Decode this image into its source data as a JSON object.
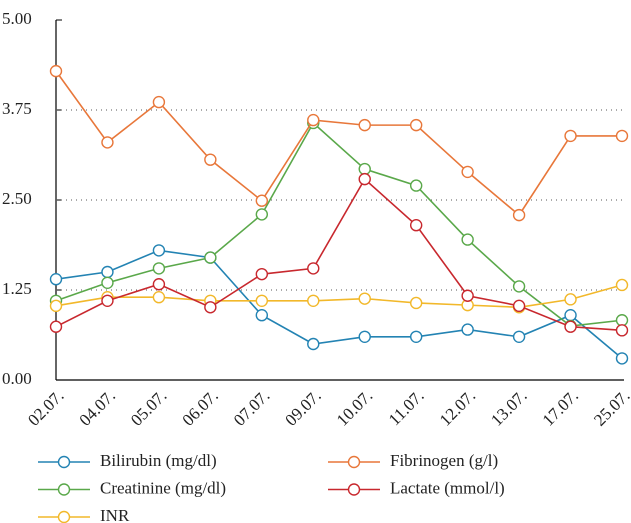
{
  "chart_data": {
    "type": "line",
    "categories": [
      "02.07.",
      "04.07.",
      "05.07.",
      "06.07.",
      "07.07.",
      "09.07.",
      "10.07.",
      "11.07.",
      "12.07.",
      "13.07.",
      "17.07.",
      "25.07."
    ],
    "series": [
      {
        "name": "Bilirubin (mg/dl)",
        "color": "#2383b3",
        "values": [
          1.4,
          1.5,
          1.8,
          1.7,
          0.9,
          0.5,
          0.6,
          0.6,
          0.7,
          0.6,
          0.9,
          0.3
        ]
      },
      {
        "name": "Creatinine (mg/dl)",
        "color": "#5aa84a",
        "values": [
          1.1,
          1.35,
          1.55,
          1.7,
          2.3,
          3.57,
          2.93,
          2.7,
          1.95,
          1.3,
          0.75,
          0.83
        ]
      },
      {
        "name": "INR",
        "color": "#f2b82a",
        "values": [
          1.03,
          1.15,
          1.15,
          1.1,
          1.1,
          1.1,
          1.13,
          1.07,
          1.04,
          1.01,
          1.12,
          1.32
        ]
      },
      {
        "name": "Fibrinogen (g/l)",
        "color": "#e8773a",
        "values": [
          4.29,
          3.3,
          3.86,
          3.06,
          2.49,
          3.61,
          3.54,
          3.54,
          2.89,
          2.29,
          3.39,
          3.39
        ]
      },
      {
        "name": "Lactate (mmol/l)",
        "color": "#c8282e",
        "values": [
          0.74,
          1.1,
          1.33,
          1.01,
          1.47,
          1.55,
          2.79,
          2.15,
          1.17,
          1.03,
          0.74,
          0.69
        ]
      }
    ],
    "ylim": [
      0,
      5
    ],
    "yticks": [
      {
        "value": 0,
        "label": "0.00"
      },
      1.25,
      {
        "value": 2.5,
        "label": "2.50"
      },
      3.75,
      {
        "value": 5,
        "label": "5.00"
      }
    ],
    "grid": true
  }
}
